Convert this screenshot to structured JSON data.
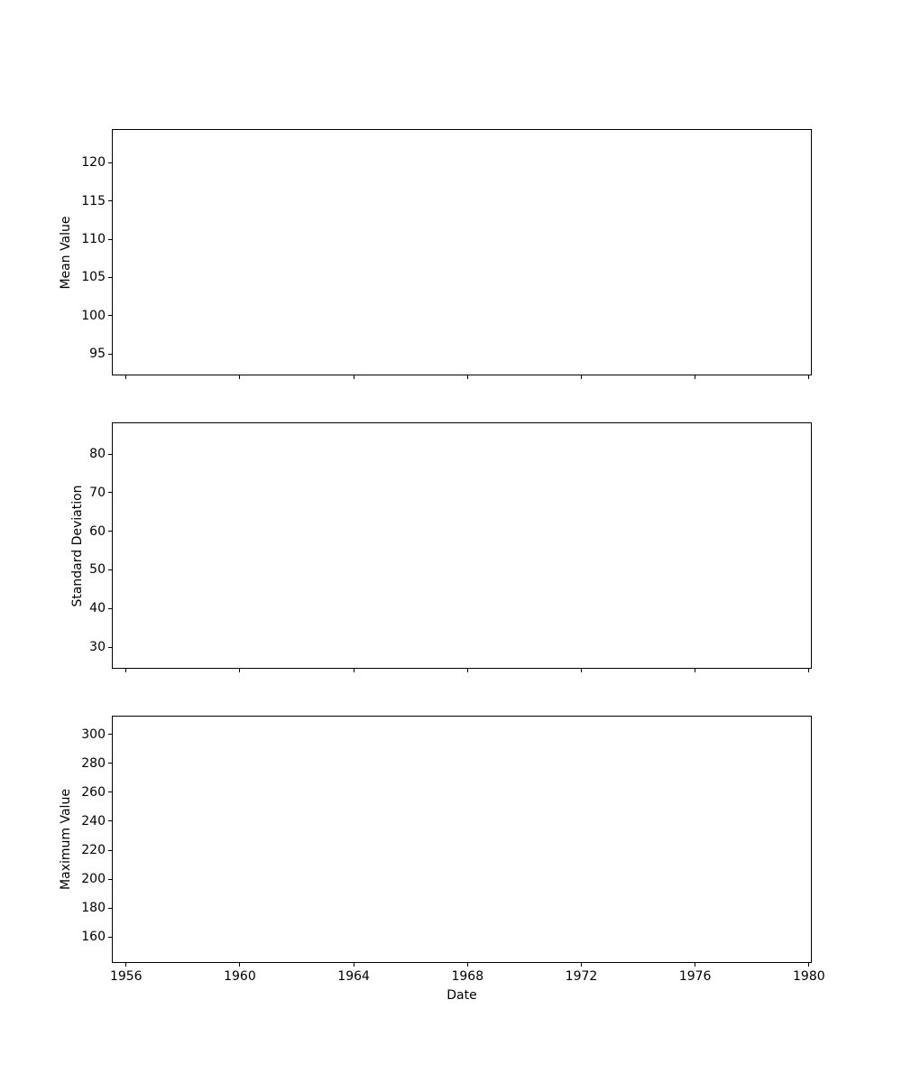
{
  "figure": {
    "background_color": "#ffffff",
    "axis_color": "#000000",
    "text_color": "#000000"
  },
  "chart_data": [
    {
      "type": "line",
      "title": "",
      "ylabel": "Mean Value",
      "yticks": [
        95,
        100,
        105,
        110,
        115,
        120
      ],
      "ylim": [
        92.2,
        124.4
      ],
      "xticks": [
        1956,
        1960,
        1964,
        1968,
        1972,
        1976,
        1980
      ],
      "xlim": [
        1955.5,
        1980.1
      ],
      "xlabel": "",
      "show_xtick_labels": false,
      "grid": false,
      "legend": null,
      "series": []
    },
    {
      "type": "line",
      "title": "",
      "ylabel": "Standard Deviation",
      "yticks": [
        30,
        40,
        50,
        60,
        70,
        80
      ],
      "ylim": [
        24.4,
        88.2
      ],
      "xticks": [
        1956,
        1960,
        1964,
        1968,
        1972,
        1976,
        1980
      ],
      "xlim": [
        1955.5,
        1980.1
      ],
      "xlabel": "",
      "show_xtick_labels": false,
      "grid": false,
      "legend": null,
      "series": []
    },
    {
      "type": "line",
      "title": "",
      "ylabel": "Maximum Value",
      "yticks": [
        160,
        180,
        200,
        220,
        240,
        260,
        280,
        300
      ],
      "ylim": [
        141.9,
        313.1
      ],
      "xticks": [
        1956,
        1960,
        1964,
        1968,
        1972,
        1976,
        1980
      ],
      "xlim": [
        1955.5,
        1980.1
      ],
      "xlabel": "Date",
      "show_xtick_labels": true,
      "grid": false,
      "legend": null,
      "series": []
    }
  ]
}
